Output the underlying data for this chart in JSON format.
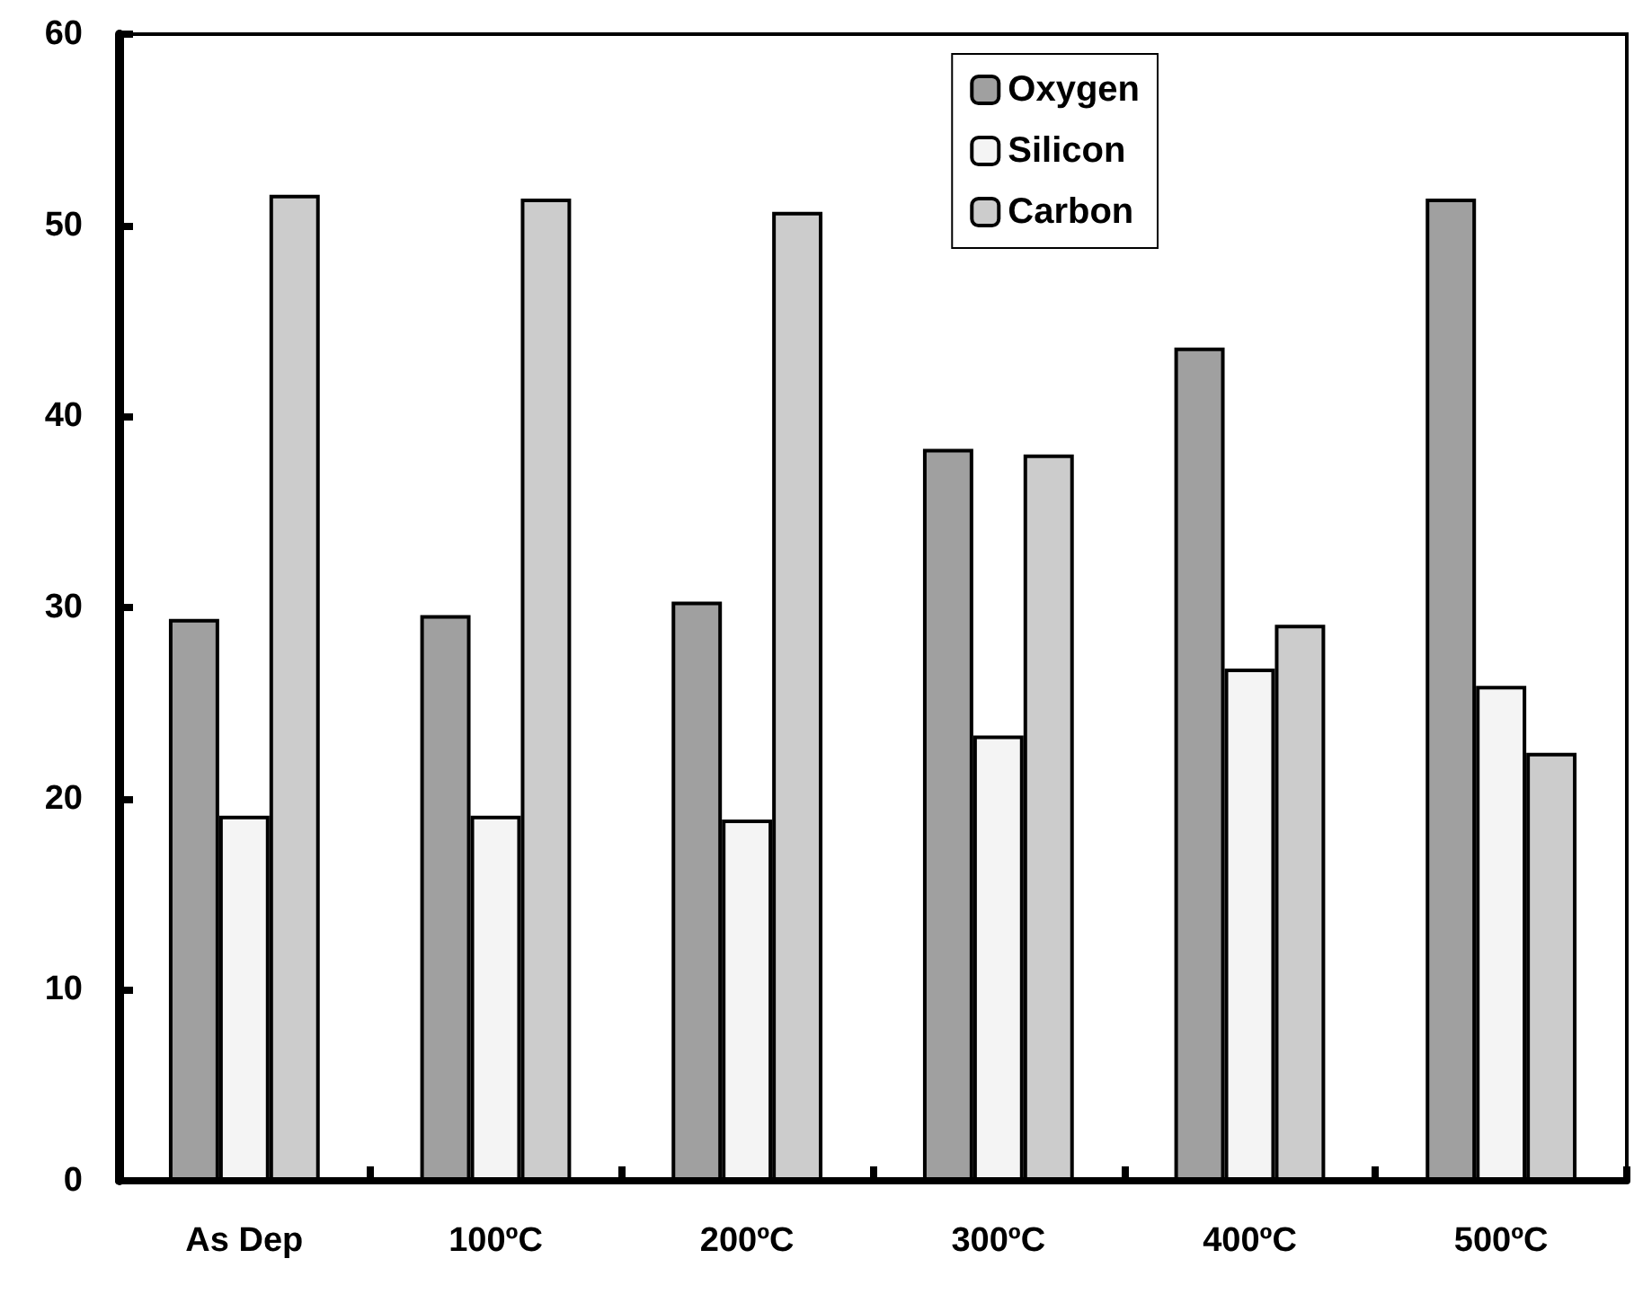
{
  "chart_data": {
    "type": "bar",
    "categories": [
      "As Dep",
      "100ºC",
      "200ºC",
      "300ºC",
      "400ºC",
      "500ºC"
    ],
    "series": [
      {
        "name": "Oxygen",
        "color": "#a0a0a0",
        "values": [
          29.4,
          29.6,
          30.3,
          38.3,
          43.6,
          51.4
        ]
      },
      {
        "name": "Silicon",
        "color": "#f4f4f4",
        "values": [
          19.1,
          19.1,
          18.9,
          23.3,
          26.8,
          25.9
        ]
      },
      {
        "name": "Carbon",
        "color": "#cccccc",
        "values": [
          51.6,
          51.4,
          50.7,
          38.0,
          29.1,
          22.4
        ]
      }
    ],
    "ylim": [
      0,
      60
    ],
    "yticks": [
      0,
      10,
      20,
      30,
      40,
      50,
      60
    ],
    "grid": false,
    "legend": "top right"
  }
}
